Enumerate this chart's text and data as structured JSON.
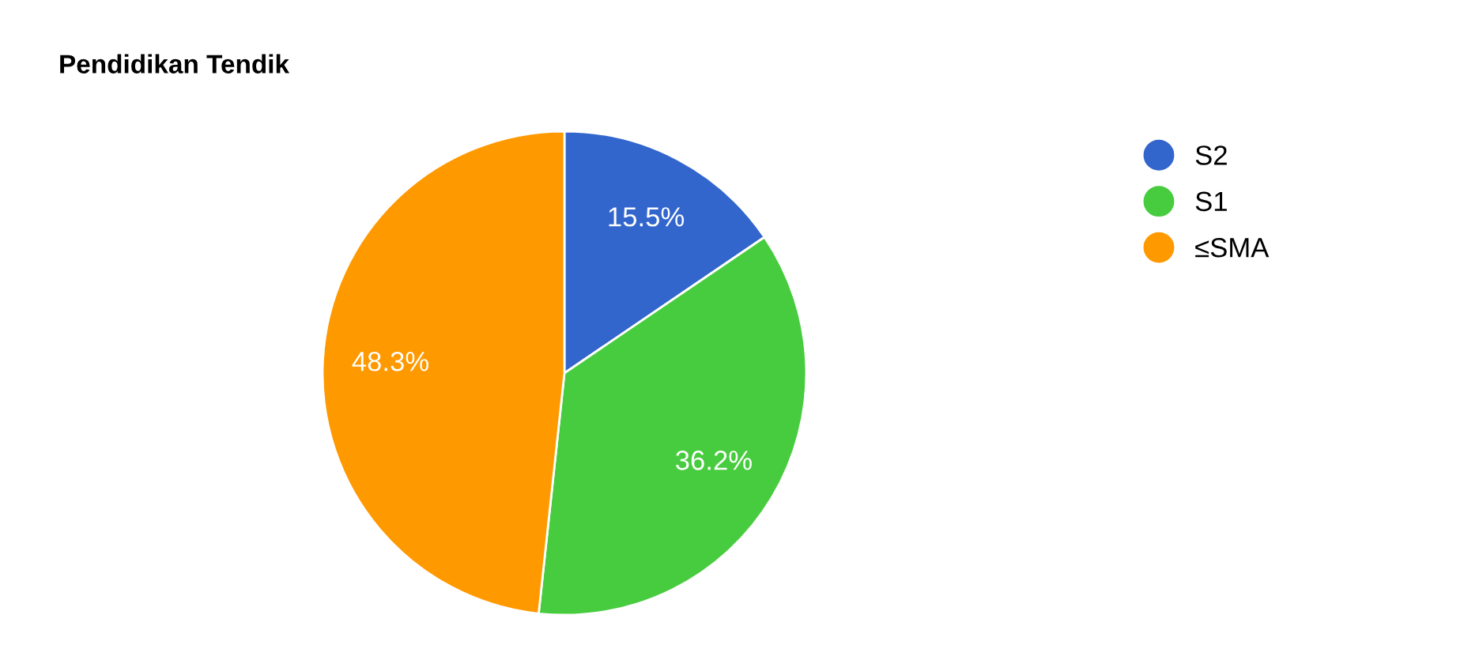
{
  "chart_data": {
    "type": "pie",
    "title": "Pendidikan Tendik",
    "categories": [
      "S2",
      "S1",
      "≤SMA"
    ],
    "values": [
      15.5,
      36.2,
      48.3
    ],
    "colors": [
      "#3366cc",
      "#48cc3f",
      "#ff9900"
    ],
    "value_labels": [
      "15.5%",
      "36.2%",
      "48.3%"
    ],
    "legend": "top right"
  }
}
